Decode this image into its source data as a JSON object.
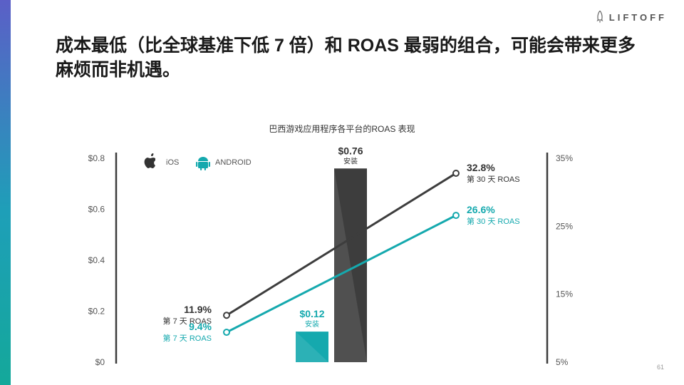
{
  "brand": {
    "logo_text": "LIFTOFF",
    "logo_icon": "rocket-icon"
  },
  "headline": "成本最低（比全球基准下低 7 倍）和 ROAS 最弱的组合，可能会带来更多麻烦而非机遇。",
  "page_number": "61",
  "colors": {
    "ios": "#3d3d3d",
    "android": "#15a9ae",
    "accent_top": "#5b5fc7",
    "accent_bottom": "#14a89a"
  },
  "chart_data": {
    "type": "bar+line",
    "title": "巴西游戏应用程序各平台的ROAS 表现",
    "legend": {
      "placement": "top-left",
      "items": [
        {
          "name": "iOS",
          "icon": "apple-icon"
        },
        {
          "name": "ANDROID",
          "icon": "android-icon"
        }
      ]
    },
    "left_axis": {
      "ylim": [
        0,
        0.8
      ],
      "ticks": [
        0,
        0.2,
        0.4,
        0.6,
        0.8
      ],
      "tick_labels": [
        "$0",
        "$0.2",
        "$0.4",
        "$0.6",
        "$0.8"
      ]
    },
    "right_axis": {
      "ylim": [
        5,
        35
      ],
      "ticks": [
        5,
        15,
        25,
        35
      ],
      "tick_labels": [
        "5%",
        "15%",
        "25%",
        "35%"
      ]
    },
    "bars": {
      "axis": "left",
      "items": [
        {
          "platform": "android",
          "value": 0.12,
          "label": "$0.12",
          "sublabel": "安装"
        },
        {
          "platform": "ios",
          "value": 0.76,
          "label": "$0.76",
          "sublabel": "安装"
        }
      ]
    },
    "lines": {
      "axis": "right",
      "x": [
        "day7",
        "day30"
      ],
      "series": [
        {
          "platform": "ios",
          "values": [
            11.9,
            32.8
          ],
          "labels": [
            "11.9%",
            "32.8%"
          ],
          "sublabels": [
            "第 7 天 ROAS",
            "第 30 天 ROAS"
          ]
        },
        {
          "platform": "android",
          "values": [
            9.4,
            26.6
          ],
          "labels": [
            "9.4%",
            "26.6%"
          ],
          "sublabels": [
            "第 7 天 ROAS",
            "第 30 天 ROAS"
          ]
        }
      ]
    },
    "grid": false
  }
}
